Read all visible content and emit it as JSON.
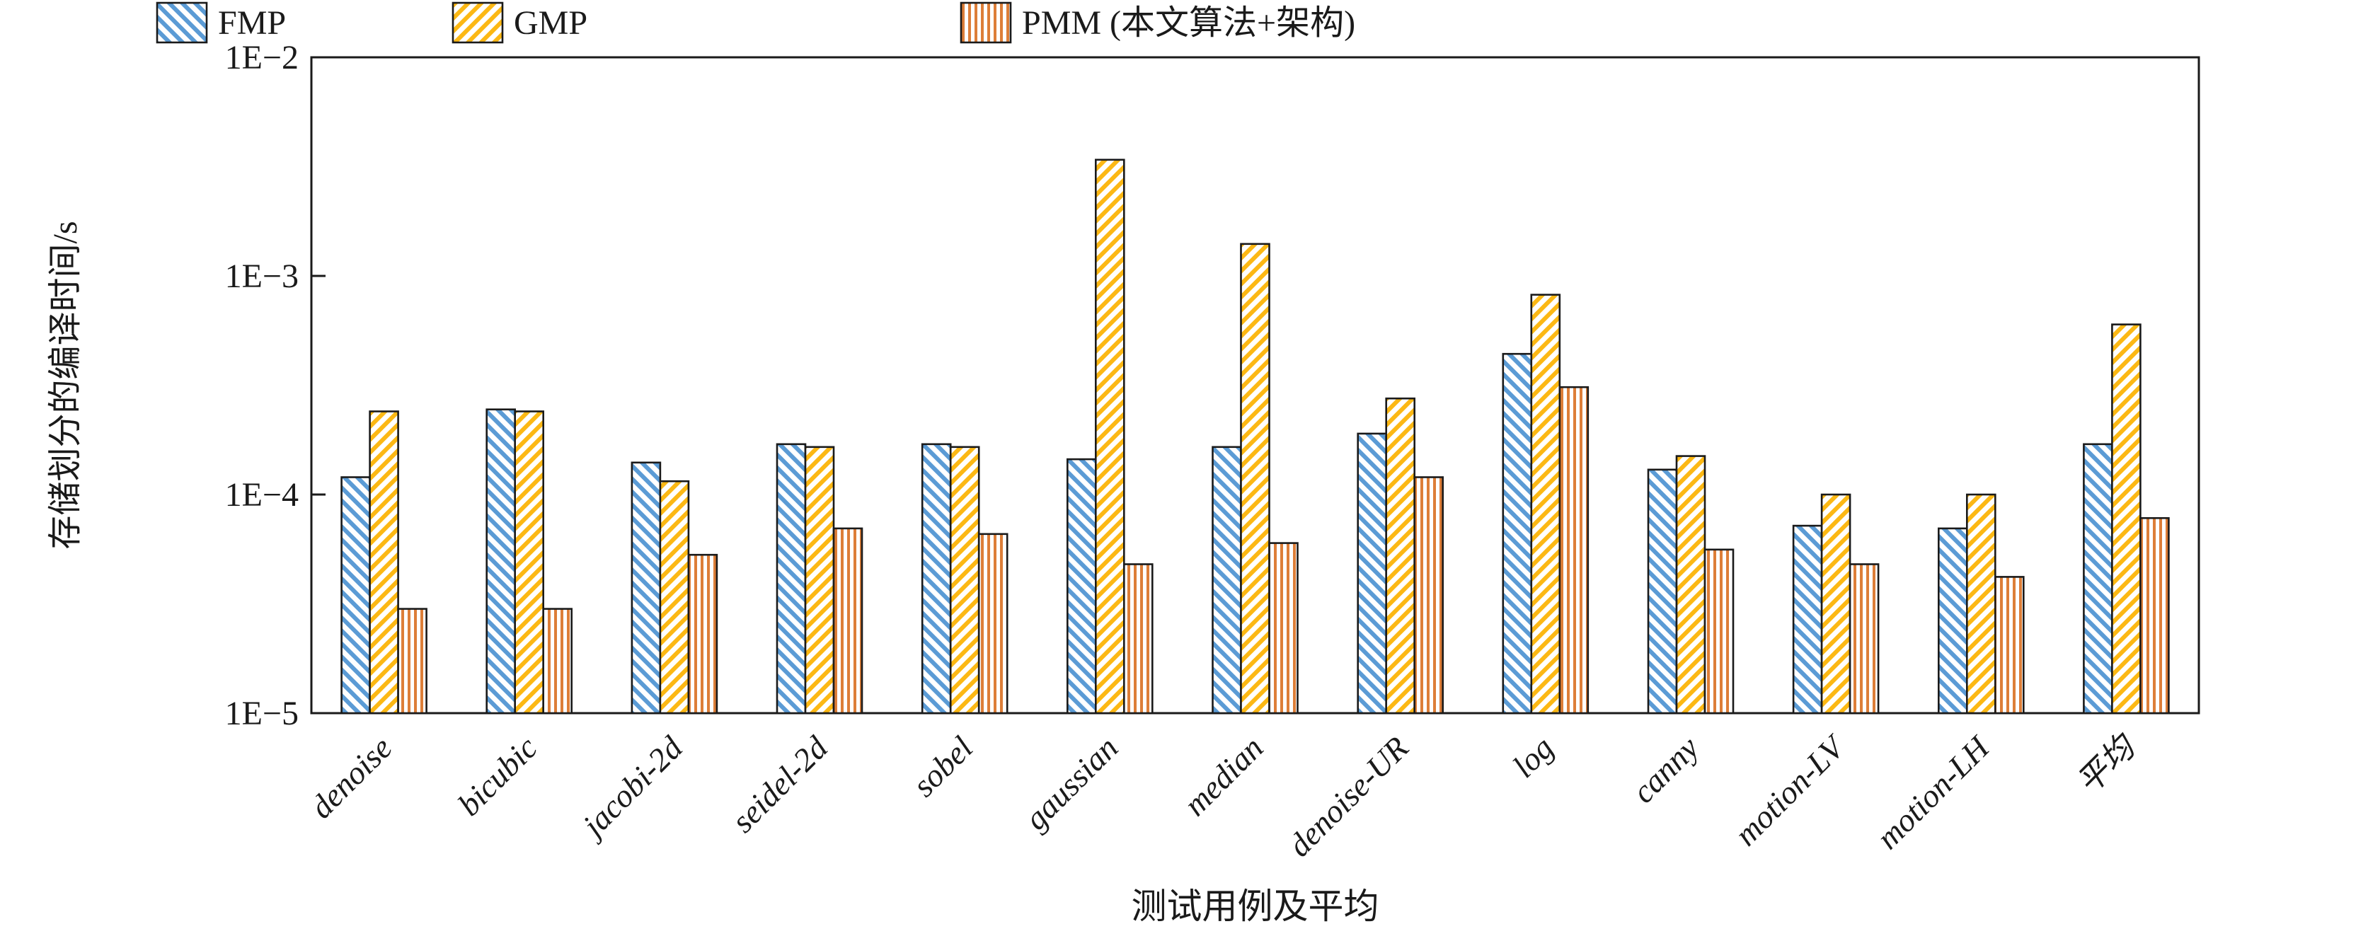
{
  "legend": {
    "items": [
      {
        "label": "FMP",
        "series": "FMP"
      },
      {
        "label": "GMP",
        "series": "GMP"
      },
      {
        "label": "PMM (本文算法+架构)",
        "series": "PMM"
      }
    ]
  },
  "chart_data": {
    "type": "bar",
    "y_scale": "log",
    "title": "",
    "xlabel": "测试用例及平均",
    "ylabel": "存储划分的编译时间/s",
    "ylim": [
      1e-05,
      0.01
    ],
    "ytick_labels": [
      "1E−2",
      "1E−3",
      "1E−4",
      "1E−5"
    ],
    "ytick_values": [
      0.01,
      0.001,
      0.0001,
      1e-05
    ],
    "grid": false,
    "legend_position": "top",
    "categories": [
      "denoise",
      "bicubic",
      "jacobi-2d",
      "seidel-2d",
      "sobel",
      "gaussian",
      "median",
      "denoise-UR",
      "log",
      "canny",
      "motion-LV",
      "motion-LH",
      "平均"
    ],
    "series": [
      {
        "name": "FMP",
        "color": "#5B9BD5",
        "hatch": "\\",
        "values": [
          0.00012,
          0.000245,
          0.00014,
          0.00017,
          0.00017,
          0.000145,
          0.000165,
          0.00019,
          0.00044,
          0.00013,
          7.2e-05,
          7e-05,
          0.00017
        ]
      },
      {
        "name": "GMP",
        "color": "#FCB814",
        "hatch": "/",
        "values": [
          0.00024,
          0.00024,
          0.000115,
          0.000165,
          0.000165,
          0.0034,
          0.0014,
          0.000275,
          0.00082,
          0.00015,
          0.0001,
          0.0001,
          0.0006
        ]
      },
      {
        "name": "PMM",
        "color": "#DD7E38",
        "hatch": "|",
        "values": [
          3e-05,
          3e-05,
          5.3e-05,
          7e-05,
          6.6e-05,
          4.8e-05,
          6e-05,
          0.00012,
          0.00031,
          5.6e-05,
          4.8e-05,
          4.2e-05,
          7.8e-05
        ]
      }
    ]
  }
}
